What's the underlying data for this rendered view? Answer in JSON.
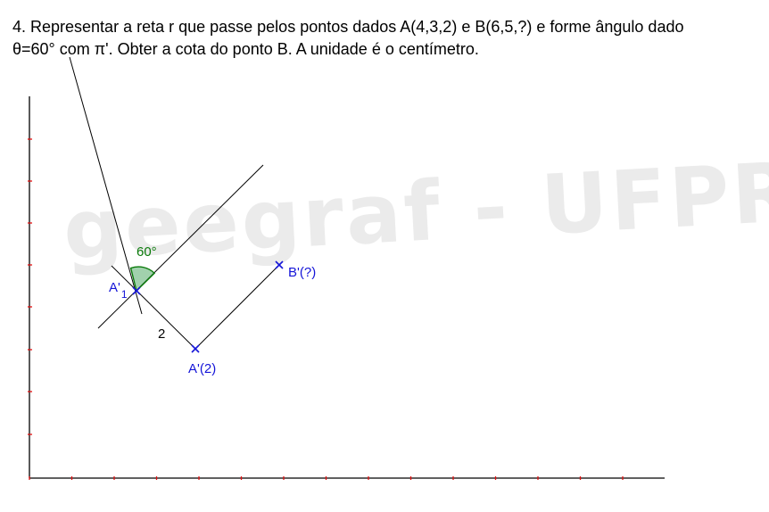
{
  "problem": {
    "line1": "4. Representar a reta r que passe pelos pontos dados A(4,3,2) e B(6,5,?) e forme ângulo dado",
    "line2": "θ=60° com π'. Obter a cota do ponto B. A unidade é o centímetro."
  },
  "watermark": "geegraf - UFPR",
  "labels": {
    "angle": "60°",
    "a1": "A'",
    "a1_sub": "1",
    "distance": "2",
    "a_prime": "A'(2)",
    "b_prime": "B'(?)"
  },
  "colors": {
    "construction": "#000000",
    "points": "#1414d8",
    "angle": "#0a7a0a",
    "angle_fill": "#2e9a4a",
    "ticks": "#e01010"
  }
}
